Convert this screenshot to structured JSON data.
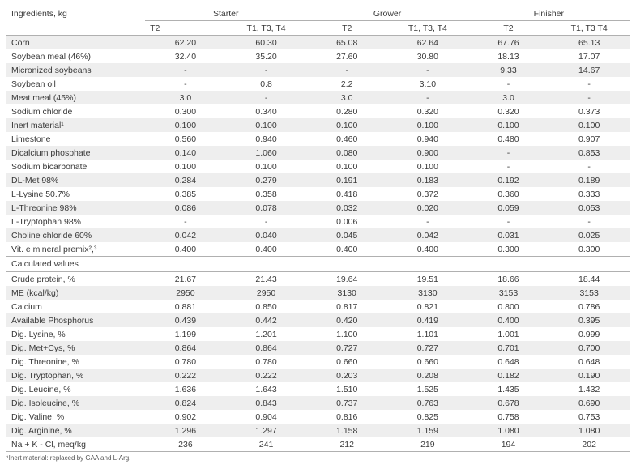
{
  "table": {
    "header": {
      "row1": [
        "Ingredients, kg",
        "Starter",
        "Grower",
        "Finisher"
      ],
      "row2": [
        "",
        "T2",
        "T1, T3, T4",
        "T2",
        "T1, T3, T4",
        "T2",
        "T1, T3 T4"
      ]
    },
    "rows_top": [
      [
        "Corn",
        "62.20",
        "60.30",
        "65.08",
        "62.64",
        "67.76",
        "65.13"
      ],
      [
        "Soybean meal (46%)",
        "32.40",
        "35.20",
        "27.60",
        "30.80",
        "18.13",
        "17.07"
      ],
      [
        "Micronized soybeans",
        "-",
        "-",
        "-",
        "-",
        "9.33",
        "14.67"
      ],
      [
        "Soybean oil",
        "-",
        "0.8",
        "2.2",
        "3.10",
        "-",
        "-"
      ],
      [
        "Meat meal (45%)",
        "3.0",
        "-",
        "3.0",
        "-",
        "3.0",
        "-"
      ],
      [
        "Sodium chloride",
        "0.300",
        "0.340",
        "0.280",
        "0.320",
        "0.320",
        "0.373"
      ],
      [
        "Inert material¹",
        "0.100",
        "0.100",
        "0.100",
        "0.100",
        "0.100",
        "0.100"
      ],
      [
        "Limestone",
        "0.560",
        "0.940",
        "0.460",
        "0.940",
        "0.480",
        "0.907"
      ],
      [
        "Dicalcium phosphate",
        "0.140",
        "1.060",
        "0.080",
        "0.900",
        "-",
        "0.853"
      ],
      [
        "Sodium bicarbonate",
        "0.100",
        "0.100",
        "0.100",
        "0.100",
        "-",
        "-"
      ],
      [
        "DL-Met 98%",
        "0.284",
        "0.279",
        "0.191",
        "0.183",
        "0.192",
        "0.189"
      ],
      [
        "L-Lysine 50.7%",
        "0.385",
        "0.358",
        "0.418",
        "0.372",
        "0.360",
        "0.333"
      ],
      [
        "L-Threonine 98%",
        "0.086",
        "0.078",
        "0.032",
        "0.020",
        "0.059",
        "0.053"
      ],
      [
        "L-Tryptophan 98%",
        "-",
        "-",
        "0.006",
        "-",
        "-",
        "-"
      ],
      [
        "Choline chloride 60%",
        "0.042",
        "0.040",
        "0.045",
        "0.042",
        "0.031",
        "0.025"
      ],
      [
        "Vit. e mineral premix²,³",
        "0.400",
        "0.400",
        "0.400",
        "0.400",
        "0.300",
        "0.300"
      ]
    ],
    "section_label": "Calculated values",
    "rows_bottom": [
      [
        "Crude protein, %",
        "21.67",
        "21.43",
        "19.64",
        "19.51",
        "18.66",
        "18.44"
      ],
      [
        "ME (kcal/kg)",
        "2950",
        "2950",
        "3130",
        "3130",
        "3153",
        "3153"
      ],
      [
        "Calcium",
        "0.881",
        "0.850",
        "0.817",
        "0.821",
        "0.800",
        "0.786"
      ],
      [
        "Available Phosphorus",
        "0.439",
        "0.442",
        "0.420",
        "0.419",
        "0.400",
        "0.395"
      ],
      [
        "Dig. Lysine, %",
        "1.199",
        "1.201",
        "1.100",
        "1.101",
        "1.001",
        "0.999"
      ],
      [
        "Dig. Met+Cys, %",
        "0.864",
        "0.864",
        "0.727",
        "0.727",
        "0.701",
        "0.700"
      ],
      [
        "Dig. Threonine, %",
        "0.780",
        "0.780",
        "0.660",
        "0.660",
        "0.648",
        "0.648"
      ],
      [
        "Dig. Tryptophan, %",
        "0.222",
        "0.222",
        "0.203",
        "0.208",
        "0.182",
        "0.190"
      ],
      [
        "Dig. Leucine, %",
        "1.636",
        "1.643",
        "1.510",
        "1.525",
        "1.435",
        "1.432"
      ],
      [
        "Dig. Isoleucine, %",
        "0.824",
        "0.843",
        "0.737",
        "0.763",
        "0.678",
        "0.690"
      ],
      [
        "Dig. Valine, %",
        "0.902",
        "0.904",
        "0.816",
        "0.825",
        "0.758",
        "0.753"
      ],
      [
        "Dig. Arginine, %",
        "1.296",
        "1.297",
        "1.158",
        "1.159",
        "1.080",
        "1.080"
      ],
      [
        "Na + K - Cl, meq/kg",
        "236",
        "241",
        "212",
        "219",
        "194",
        "202"
      ]
    ],
    "footnote": "¹Inert material: replaced by GAA and L-Arg."
  }
}
